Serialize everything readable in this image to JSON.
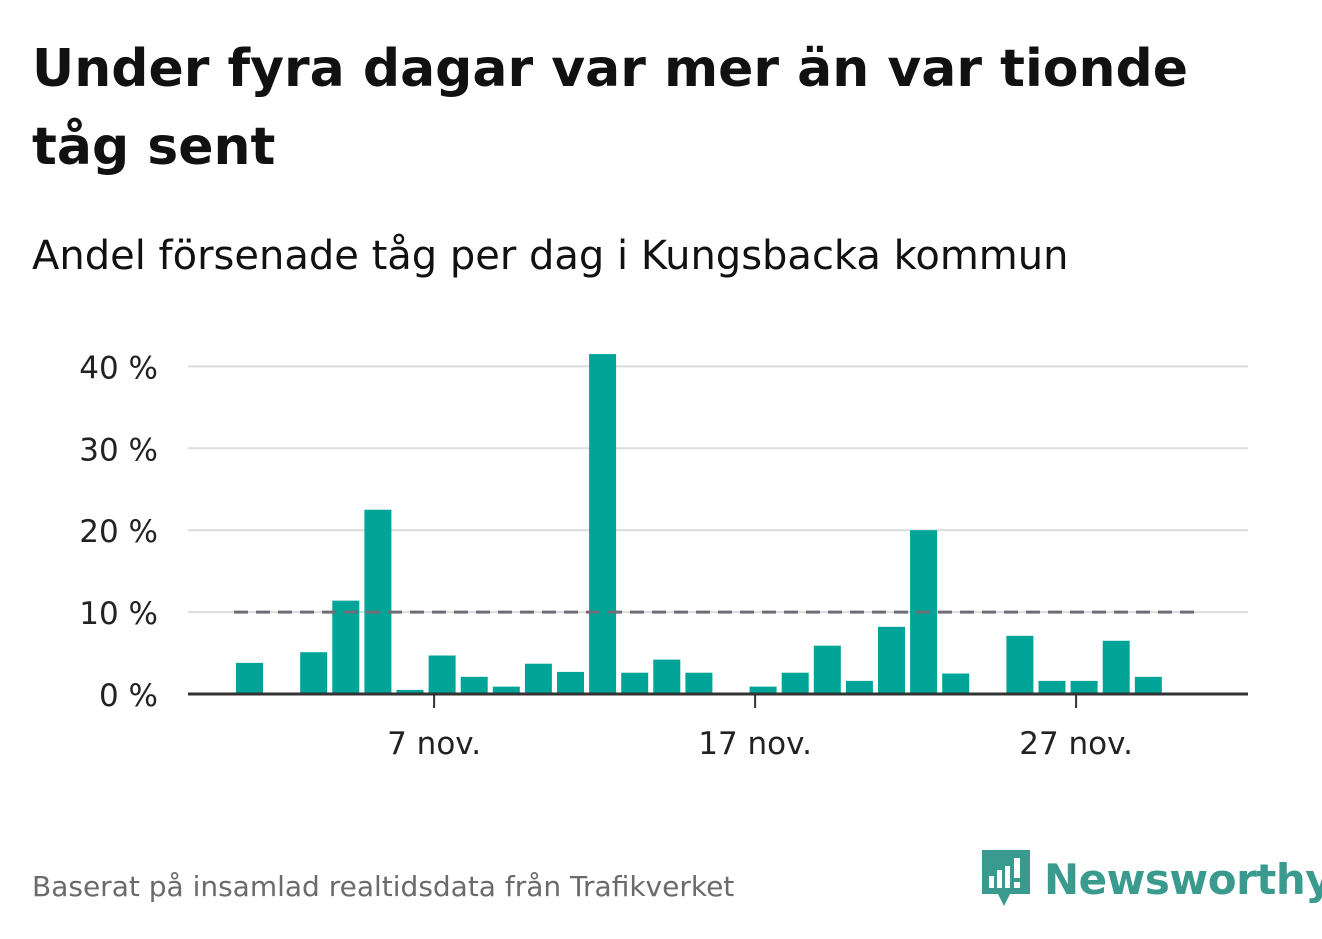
{
  "title": "Under fyra dagar var mer än var tionde tåg sent",
  "subtitle": "Andel försenade tåg per dag i Kungsbacka kommun",
  "footer": {
    "source": "Baserat på insamlad realtidsdata från Trafikverket",
    "brand": "Newsworthy"
  },
  "colors": {
    "bar": "#00a598",
    "reference": "#6e6e78",
    "grid": "#dcdcdc",
    "brand": "#3a9a8e"
  },
  "chart_data": {
    "type": "bar",
    "x": [
      "1 nov.",
      "2 nov.",
      "3 nov.",
      "4 nov.",
      "5 nov.",
      "6 nov.",
      "7 nov.",
      "8 nov.",
      "9 nov.",
      "10 nov.",
      "11 nov.",
      "12 nov.",
      "13 nov.",
      "14 nov.",
      "15 nov.",
      "16 nov.",
      "17 nov.",
      "18 nov.",
      "19 nov.",
      "20 nov.",
      "21 nov.",
      "22 nov.",
      "23 nov.",
      "24 nov.",
      "25 nov.",
      "26 nov.",
      "27 nov.",
      "28 nov.",
      "29 nov.",
      "30 nov."
    ],
    "values": [
      3.8,
      null,
      5.1,
      11.4,
      22.5,
      0.5,
      4.7,
      2.1,
      0.9,
      3.7,
      2.7,
      41.5,
      2.6,
      4.2,
      2.6,
      null,
      0.9,
      2.6,
      5.9,
      1.6,
      8.2,
      20.0,
      2.5,
      null,
      7.1,
      1.6,
      1.6,
      6.5,
      2.1,
      null
    ],
    "reference_line": 10,
    "yticks": [
      "0 %",
      "10 %",
      "20 %",
      "30 %",
      "40 %"
    ],
    "ytick_values": [
      0,
      10,
      20,
      30,
      40
    ],
    "xticks": [
      "7 nov.",
      "17 nov.",
      "27 nov."
    ],
    "xtick_index": [
      6,
      16,
      26
    ],
    "ylim": [
      0,
      42
    ],
    "grid": true
  }
}
